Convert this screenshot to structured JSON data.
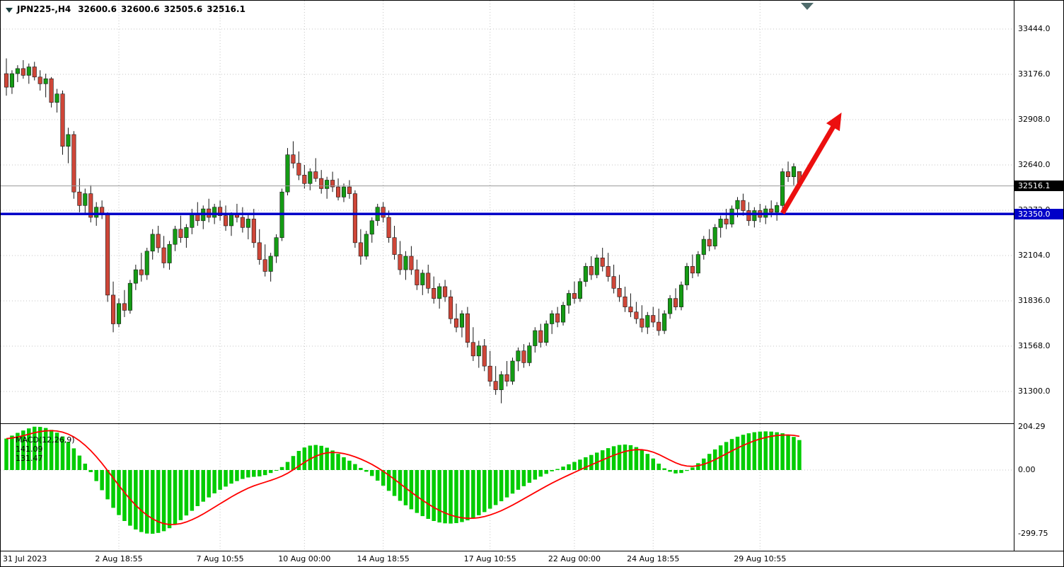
{
  "header": {
    "symbol_period": "JPN225-,H4",
    "ohlc": {
      "open": "32600.6",
      "high": "32600.6",
      "low": "32505.6",
      "close": "32516.1"
    }
  },
  "indicator_label": {
    "name": "MACD(12,26,9)",
    "value_main": "141.09",
    "value_signal": "131.47"
  },
  "price_axis": {
    "grid_labels": [
      "33444.0",
      "33176.0",
      "32908.0",
      "32640.0",
      "32372.0",
      "32104.0",
      "31836.0",
      "31568.0",
      "31300.0"
    ],
    "current_price_badge": {
      "text": "32516.1",
      "bg": "#000000"
    },
    "hline_badge": {
      "text": "32350.0",
      "bg": "#0000C8"
    }
  },
  "macd_axis": {
    "labels": [
      "204.29",
      "0.00",
      "-299.75"
    ],
    "values": [
      204.29,
      0,
      -299.75
    ]
  },
  "time_axis": {
    "labels": [
      {
        "text": "31 Jul 2023",
        "bar": 0
      },
      {
        "text": "2 Aug 18:55",
        "bar": 20
      },
      {
        "text": "7 Aug 10:55",
        "bar": 38
      },
      {
        "text": "10 Aug 00:00",
        "bar": 53
      },
      {
        "text": "14 Aug 18:55",
        "bar": 67
      },
      {
        "text": "17 Aug 10:55",
        "bar": 86
      },
      {
        "text": "22 Aug 00:00",
        "bar": 101
      },
      {
        "text": "24 Aug 18:55",
        "bar": 115
      },
      {
        "text": "29 Aug 10:55",
        "bar": 134
      }
    ]
  },
  "colors": {
    "bull": "#149B14",
    "bear": "#CF4638",
    "wick": "#161616",
    "hist": "#00CC00",
    "signal": "#FF0000",
    "support": "#0000C8",
    "arrow": "#EC0F0F",
    "grid": "#C4C4C4",
    "current_line": "#9A9A9A",
    "marker": "#4F6B6B"
  },
  "chart_data": [
    {
      "type": "candlestick",
      "title": "JPN225- H4 candlestick chart",
      "ylim": [
        31107,
        33612
      ],
      "price_gridlines": [
        33444,
        33176,
        32908,
        32640,
        32372,
        32104,
        31836,
        31568,
        31300
      ],
      "support_line": {
        "price": 32350,
        "label": "32350.0",
        "style": "solid-thick"
      },
      "current_price": 32516.1,
      "trend_arrow": {
        "from": {
          "bar": 138,
          "price": 32355
        },
        "to": {
          "bar": 148.5,
          "price": 32950
        }
      },
      "candles": [
        [
          33180,
          33270,
          33050,
          33100
        ],
        [
          33100,
          33200,
          33060,
          33180
        ],
        [
          33180,
          33230,
          33130,
          33210
        ],
        [
          33210,
          33260,
          33150,
          33170
        ],
        [
          33170,
          33240,
          33120,
          33220
        ],
        [
          33220,
          33250,
          33140,
          33160
        ],
        [
          33160,
          33200,
          33080,
          33120
        ],
        [
          33120,
          33180,
          33040,
          33150
        ],
        [
          33150,
          33160,
          32980,
          33010
        ],
        [
          33010,
          33090,
          32950,
          33060
        ],
        [
          33060,
          33080,
          32700,
          32750
        ],
        [
          32750,
          32860,
          32650,
          32820
        ],
        [
          32820,
          32840,
          32440,
          32480
        ],
        [
          32480,
          32560,
          32360,
          32400
        ],
        [
          32400,
          32500,
          32350,
          32470
        ],
        [
          32470,
          32520,
          32300,
          32330
        ],
        [
          32330,
          32420,
          32280,
          32390
        ],
        [
          32390,
          32430,
          32320,
          32350
        ],
        [
          32350,
          32360,
          31830,
          31870
        ],
        [
          31870,
          31950,
          31650,
          31700
        ],
        [
          31700,
          31850,
          31680,
          31820
        ],
        [
          31820,
          31900,
          31740,
          31780
        ],
        [
          31780,
          31960,
          31760,
          31940
        ],
        [
          31940,
          32050,
          31900,
          32020
        ],
        [
          32020,
          32120,
          31950,
          31990
        ],
        [
          31990,
          32150,
          31960,
          32130
        ],
        [
          32130,
          32260,
          32080,
          32230
        ],
        [
          32230,
          32280,
          32120,
          32150
        ],
        [
          32150,
          32220,
          32030,
          32060
        ],
        [
          32060,
          32190,
          32020,
          32170
        ],
        [
          32170,
          32280,
          32130,
          32260
        ],
        [
          32260,
          32340,
          32180,
          32210
        ],
        [
          32210,
          32290,
          32150,
          32270
        ],
        [
          32270,
          32380,
          32230,
          32350
        ],
        [
          32350,
          32420,
          32280,
          32310
        ],
        [
          32310,
          32400,
          32260,
          32380
        ],
        [
          32380,
          32440,
          32300,
          32330
        ],
        [
          32330,
          32410,
          32290,
          32390
        ],
        [
          32390,
          32430,
          32310,
          32340
        ],
        [
          32340,
          32400,
          32250,
          32280
        ],
        [
          32280,
          32360,
          32220,
          32350
        ],
        [
          32350,
          32410,
          32300,
          32330
        ],
        [
          32330,
          32390,
          32240,
          32270
        ],
        [
          32270,
          32350,
          32200,
          32320
        ],
        [
          32320,
          32380,
          32150,
          32180
        ],
        [
          32180,
          32260,
          32050,
          32080
        ],
        [
          32080,
          32170,
          31980,
          32010
        ],
        [
          32010,
          32120,
          31950,
          32100
        ],
        [
          32100,
          32230,
          32060,
          32210
        ],
        [
          32210,
          32500,
          32190,
          32480
        ],
        [
          32480,
          32740,
          32460,
          32700
        ],
        [
          32700,
          32780,
          32620,
          32650
        ],
        [
          32650,
          32720,
          32550,
          32580
        ],
        [
          32580,
          32640,
          32500,
          32530
        ],
        [
          32530,
          32620,
          32490,
          32600
        ],
        [
          32600,
          32680,
          32540,
          32560
        ],
        [
          32560,
          32610,
          32470,
          32500
        ],
        [
          32500,
          32570,
          32440,
          32550
        ],
        [
          32550,
          32600,
          32480,
          32510
        ],
        [
          32510,
          32560,
          32430,
          32450
        ],
        [
          32450,
          32530,
          32420,
          32510
        ],
        [
          32510,
          32550,
          32440,
          32470
        ],
        [
          32470,
          32490,
          32150,
          32180
        ],
        [
          32180,
          32260,
          32050,
          32100
        ],
        [
          32100,
          32250,
          32080,
          32230
        ],
        [
          32230,
          32330,
          32180,
          32310
        ],
        [
          32310,
          32410,
          32280,
          32390
        ],
        [
          32390,
          32420,
          32300,
          32330
        ],
        [
          32330,
          32370,
          32180,
          32210
        ],
        [
          32210,
          32280,
          32080,
          32110
        ],
        [
          32110,
          32190,
          31990,
          32020
        ],
        [
          32020,
          32130,
          31960,
          32100
        ],
        [
          32100,
          32160,
          31990,
          32020
        ],
        [
          32020,
          32080,
          31900,
          31930
        ],
        [
          31930,
          32020,
          31870,
          32000
        ],
        [
          32000,
          32050,
          31880,
          31910
        ],
        [
          31910,
          31980,
          31820,
          31850
        ],
        [
          31850,
          31940,
          31790,
          31920
        ],
        [
          31920,
          31960,
          31830,
          31860
        ],
        [
          31860,
          31900,
          31700,
          31730
        ],
        [
          31730,
          31820,
          31650,
          31680
        ],
        [
          31680,
          31780,
          31620,
          31760
        ],
        [
          31760,
          31800,
          31560,
          31590
        ],
        [
          31590,
          31680,
          31480,
          31510
        ],
        [
          31510,
          31600,
          31440,
          31570
        ],
        [
          31570,
          31610,
          31420,
          31450
        ],
        [
          31450,
          31540,
          31330,
          31360
        ],
        [
          31360,
          31450,
          31280,
          31310
        ],
        [
          31310,
          31420,
          31230,
          31400
        ],
        [
          31400,
          31480,
          31330,
          31360
        ],
        [
          31360,
          31500,
          31340,
          31480
        ],
        [
          31480,
          31560,
          31420,
          31540
        ],
        [
          31540,
          31580,
          31440,
          31470
        ],
        [
          31470,
          31590,
          31450,
          31570
        ],
        [
          31570,
          31680,
          31530,
          31660
        ],
        [
          31660,
          31700,
          31560,
          31590
        ],
        [
          31590,
          31720,
          31570,
          31700
        ],
        [
          31700,
          31780,
          31640,
          31760
        ],
        [
          31760,
          31800,
          31680,
          31710
        ],
        [
          31710,
          31830,
          31690,
          31810
        ],
        [
          31810,
          31900,
          31760,
          31880
        ],
        [
          31880,
          31950,
          31820,
          31850
        ],
        [
          31850,
          31970,
          31830,
          31950
        ],
        [
          31950,
          32060,
          31920,
          32040
        ],
        [
          32040,
          32100,
          31960,
          31990
        ],
        [
          31990,
          32110,
          31970,
          32090
        ],
        [
          32090,
          32150,
          32010,
          32040
        ],
        [
          32040,
          32120,
          31950,
          31980
        ],
        [
          31980,
          32050,
          31880,
          31910
        ],
        [
          31910,
          31990,
          31830,
          31860
        ],
        [
          31860,
          31920,
          31770,
          31800
        ],
        [
          31800,
          31880,
          31740,
          31770
        ],
        [
          31770,
          31830,
          31700,
          31730
        ],
        [
          31730,
          31810,
          31650,
          31680
        ],
        [
          31680,
          31770,
          31640,
          31750
        ],
        [
          31750,
          31800,
          31680,
          31710
        ],
        [
          31710,
          31790,
          31630,
          31660
        ],
        [
          31660,
          31780,
          31640,
          31760
        ],
        [
          31760,
          31870,
          31730,
          31850
        ],
        [
          31850,
          31910,
          31780,
          31800
        ],
        [
          31800,
          31950,
          31780,
          31930
        ],
        [
          31930,
          32060,
          31900,
          32040
        ],
        [
          32040,
          32110,
          31970,
          32000
        ],
        [
          32000,
          32130,
          31980,
          32110
        ],
        [
          32110,
          32220,
          32080,
          32200
        ],
        [
          32200,
          32260,
          32130,
          32160
        ],
        [
          32160,
          32290,
          32140,
          32270
        ],
        [
          32270,
          32340,
          32210,
          32320
        ],
        [
          32320,
          32380,
          32260,
          32290
        ],
        [
          32290,
          32400,
          32270,
          32380
        ],
        [
          32380,
          32450,
          32330,
          32430
        ],
        [
          32430,
          32470,
          32340,
          32370
        ],
        [
          32370,
          32420,
          32280,
          32310
        ],
        [
          32310,
          32390,
          32270,
          32370
        ],
        [
          32370,
          32410,
          32300,
          32330
        ],
        [
          32330,
          32400,
          32290,
          32380
        ],
        [
          32380,
          32430,
          32330,
          32360
        ],
        [
          32360,
          32420,
          32310,
          32400
        ],
        [
          32400,
          32620,
          32380,
          32600
        ],
        [
          32600,
          32660,
          32540,
          32570
        ],
        [
          32570,
          32650,
          32520,
          32630
        ],
        [
          32600.6,
          32600.6,
          32505.6,
          32516.1
        ]
      ]
    },
    {
      "type": "bar",
      "title": "MACD(12,26,9)",
      "ylim": [
        -299.75,
        204.29
      ],
      "zero_line": 0,
      "signal_ema_period": 9,
      "values": [
        148,
        162,
        175,
        186,
        196,
        204,
        203,
        198,
        189,
        176,
        158,
        132,
        102,
        68,
        30,
        -10,
        -52,
        -95,
        -138,
        -178,
        -212,
        -240,
        -262,
        -280,
        -292,
        -299,
        -300,
        -296,
        -288,
        -274,
        -256,
        -236,
        -214,
        -192,
        -170,
        -149,
        -129,
        -110,
        -93,
        -78,
        -64,
        -52,
        -42,
        -35,
        -32,
        -30,
        -24,
        -14,
        -2,
        14,
        38,
        66,
        90,
        106,
        115,
        118,
        114,
        105,
        92,
        76,
        60,
        44,
        28,
        10,
        -8,
        -28,
        -50,
        -74,
        -98,
        -122,
        -145,
        -166,
        -185,
        -202,
        -217,
        -230,
        -240,
        -247,
        -251,
        -252,
        -250,
        -245,
        -237,
        -226,
        -213,
        -198,
        -182,
        -165,
        -147,
        -129,
        -111,
        -93,
        -76,
        -60,
        -45,
        -31,
        -18,
        -6,
        5,
        16,
        27,
        38,
        49,
        60,
        71,
        82,
        93,
        103,
        112,
        118,
        120,
        117,
        108,
        94,
        76,
        54,
        30,
        8,
        -8,
        -16,
        -14,
        -4,
        12,
        32,
        54,
        76,
        97,
        116,
        132,
        146,
        157,
        166,
        173,
        178,
        181,
        182,
        181,
        178,
        173,
        166,
        156,
        141.09
      ]
    }
  ]
}
